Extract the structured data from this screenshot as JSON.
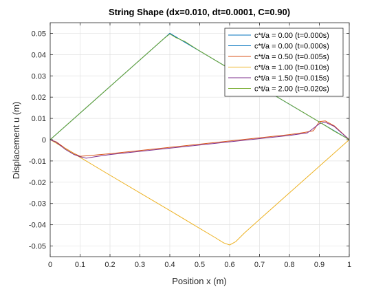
{
  "chart_data": {
    "type": "line",
    "title": "String Shape (dx=0.010, dt=0.0001, C=0.90)",
    "xlabel": "Position x (m)",
    "ylabel": "Displacement u (m)",
    "xlim": [
      0,
      1
    ],
    "ylim": [
      -0.055,
      0.055
    ],
    "xticks": [
      0,
      0.1,
      0.2,
      0.3,
      0.4,
      0.5,
      0.6,
      0.7,
      0.8,
      0.9,
      1
    ],
    "xtick_labels": [
      "0",
      "0.1",
      "0.2",
      "0.3",
      "0.4",
      "0.5",
      "0.6",
      "0.7",
      "0.8",
      "0.9",
      "1"
    ],
    "yticks": [
      0.05,
      0.04,
      0.03,
      0.02,
      0.01,
      0,
      -0.01,
      -0.02,
      -0.03,
      -0.04,
      -0.05
    ],
    "ytick_labels": [
      "0.05",
      "0.04",
      "0.03",
      "0.02",
      "0.01",
      "0",
      "-0.01",
      "-0.02",
      "-0.03",
      "-0.04",
      "-0.05"
    ],
    "grid": true,
    "legend_position": "top-right",
    "series": [
      {
        "name": "c*t/a = 0.00 (t=0.000s)",
        "color": "#0072BD",
        "x": [
          0,
          0.4,
          1
        ],
        "y": [
          0,
          0.05,
          0
        ]
      },
      {
        "name": "c*t/a = 0.00 (t=0.000s)",
        "color": "#0072BD",
        "x": [
          0,
          0.4,
          1
        ],
        "y": [
          0,
          0.05,
          0
        ]
      },
      {
        "name": "c*t/a = 0.50 (t=0.005s)",
        "color": "#D95319",
        "x": [
          0,
          0.02,
          0.05,
          0.08,
          0.1,
          0.12,
          0.13,
          0.2,
          0.3,
          0.4,
          0.5,
          0.6,
          0.7,
          0.8,
          0.85,
          0.88,
          0.9,
          0.92,
          0.95,
          1
        ],
        "y": [
          0,
          -0.001,
          -0.004,
          -0.0065,
          -0.0078,
          -0.0076,
          -0.0075,
          -0.0066,
          -0.0051,
          -0.0036,
          -0.0021,
          -0.0006,
          0.0009,
          0.0024,
          0.0034,
          0.0042,
          0.0085,
          0.0088,
          0.0065,
          0
        ]
      },
      {
        "name": "c*t/a = 1.00 (t=0.010s)",
        "color": "#EDB120",
        "x": [
          0,
          0.1,
          0.2,
          0.3,
          0.4,
          0.5,
          0.55,
          0.58,
          0.6,
          0.62,
          0.65,
          0.7,
          0.8,
          0.9,
          1
        ],
        "y": [
          0,
          -0.0083,
          -0.0167,
          -0.025,
          -0.0333,
          -0.0417,
          -0.0459,
          -0.0485,
          -0.0495,
          -0.048,
          -0.0438,
          -0.0375,
          -0.025,
          -0.0125,
          0
        ]
      },
      {
        "name": "c*t/a = 1.50 (t=0.015s)",
        "color": "#7E2F8E",
        "x": [
          0,
          0.02,
          0.05,
          0.08,
          0.1,
          0.12,
          0.13,
          0.15,
          0.2,
          0.3,
          0.4,
          0.5,
          0.6,
          0.7,
          0.8,
          0.86,
          0.9,
          0.92,
          0.95,
          1
        ],
        "y": [
          0,
          -0.0012,
          -0.0045,
          -0.007,
          -0.008,
          -0.0087,
          -0.0085,
          -0.008,
          -0.007,
          -0.0055,
          -0.004,
          -0.0025,
          -0.001,
          0.0005,
          0.002,
          0.0032,
          0.0075,
          0.0082,
          0.0062,
          0
        ]
      },
      {
        "name": "c*t/a = 2.00 (t=0.020s)",
        "color": "#77AC30",
        "x": [
          0,
          0.1,
          0.2,
          0.3,
          0.38,
          0.4,
          0.42,
          0.45,
          0.5,
          0.6,
          0.7,
          0.8,
          0.85,
          0.9,
          0.95,
          1
        ],
        "y": [
          0,
          0.0125,
          0.025,
          0.0375,
          0.0475,
          0.0497,
          0.048,
          0.0462,
          0.0417,
          0.0333,
          0.025,
          0.0167,
          0.0125,
          0.0083,
          0.004,
          0
        ]
      }
    ]
  }
}
